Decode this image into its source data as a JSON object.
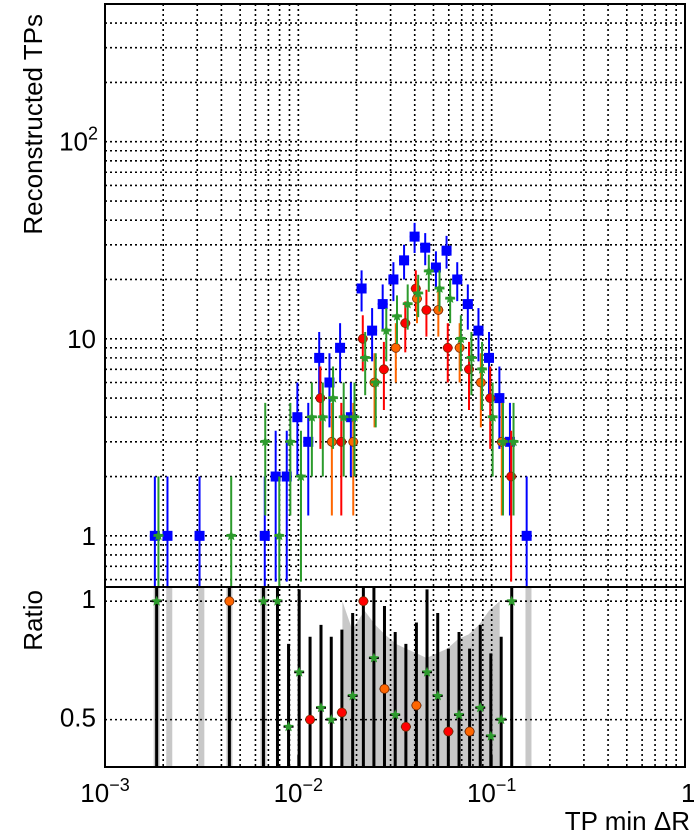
{
  "chart_data": [
    {
      "panel": "top",
      "type": "scatter",
      "title": "",
      "ylabel": "Reconstructed TPs",
      "xlabel": "",
      "x_scale": "log",
      "y_scale": "log",
      "xlim": [
        0.001,
        1
      ],
      "ylim": [
        0.55,
        500
      ],
      "grid": true,
      "y_ticks": [
        {
          "value": 1,
          "label": "1"
        },
        {
          "value": 10,
          "label": "10"
        },
        {
          "value": 100,
          "label": "10",
          "sup": "2"
        }
      ],
      "series": [
        {
          "color": "#0000ff",
          "marker": "square",
          "points": [
            {
              "x": 0.00185,
              "y": 1
            },
            {
              "x": 0.00215,
              "y": 1
            },
            {
              "x": 0.00315,
              "y": 1
            },
            {
              "x": 0.00685,
              "y": 1
            },
            {
              "x": 0.0078,
              "y": 2
            },
            {
              "x": 0.0089,
              "y": 2
            },
            {
              "x": 0.0101,
              "y": 4
            },
            {
              "x": 0.0115,
              "y": 3
            },
            {
              "x": 0.0131,
              "y": 8
            },
            {
              "x": 0.0148,
              "y": 6
            },
            {
              "x": 0.0168,
              "y": 9
            },
            {
              "x": 0.0191,
              "y": 4
            },
            {
              "x": 0.0217,
              "y": 18
            },
            {
              "x": 0.0246,
              "y": 11
            },
            {
              "x": 0.0279,
              "y": 15
            },
            {
              "x": 0.0317,
              "y": 20
            },
            {
              "x": 0.036,
              "y": 25
            },
            {
              "x": 0.0408,
              "y": 33
            },
            {
              "x": 0.0463,
              "y": 29
            },
            {
              "x": 0.0526,
              "y": 23
            },
            {
              "x": 0.0597,
              "y": 28
            },
            {
              "x": 0.0678,
              "y": 20
            },
            {
              "x": 0.0769,
              "y": 15
            },
            {
              "x": 0.0873,
              "y": 11
            },
            {
              "x": 0.099,
              "y": 8
            },
            {
              "x": 0.112,
              "y": 5
            },
            {
              "x": 0.127,
              "y": 3
            },
            {
              "x": 0.155,
              "y": 1
            }
          ]
        },
        {
          "color": "#ff0000",
          "marker": "circle",
          "points": [
            {
              "x": 0.0131,
              "y": 5
            },
            {
              "x": 0.0168,
              "y": 3
            },
            {
              "x": 0.0217,
              "y": 10
            },
            {
              "x": 0.0279,
              "y": 7
            },
            {
              "x": 0.036,
              "y": 12
            },
            {
              "x": 0.0408,
              "y": 18
            },
            {
              "x": 0.0463,
              "y": 14
            },
            {
              "x": 0.0597,
              "y": 9
            },
            {
              "x": 0.0769,
              "y": 7
            },
            {
              "x": 0.099,
              "y": 5
            },
            {
              "x": 0.127,
              "y": 2
            }
          ]
        },
        {
          "color": "#ff6600",
          "marker": "circle",
          "points": [
            {
              "x": 0.0148,
              "y": 3
            },
            {
              "x": 0.0191,
              "y": 3
            },
            {
              "x": 0.0246,
              "y": 6
            },
            {
              "x": 0.0317,
              "y": 9
            },
            {
              "x": 0.0408,
              "y": 16
            },
            {
              "x": 0.0526,
              "y": 14
            },
            {
              "x": 0.0678,
              "y": 9
            },
            {
              "x": 0.0873,
              "y": 6
            },
            {
              "x": 0.112,
              "y": 3
            }
          ]
        },
        {
          "color": "#2c9b2c",
          "marker": "star",
          "points": [
            {
              "x": 0.00185,
              "y": 1
            },
            {
              "x": 0.0044,
              "y": 1
            },
            {
              "x": 0.0066,
              "y": 3
            },
            {
              "x": 0.0078,
              "y": 1
            },
            {
              "x": 0.0089,
              "y": 3
            },
            {
              "x": 0.0101,
              "y": 2
            },
            {
              "x": 0.0115,
              "y": 4
            },
            {
              "x": 0.0131,
              "y": 4
            },
            {
              "x": 0.0148,
              "y": 5
            },
            {
              "x": 0.0168,
              "y": 4
            },
            {
              "x": 0.0191,
              "y": 4
            },
            {
              "x": 0.0217,
              "y": 8
            },
            {
              "x": 0.0246,
              "y": 6
            },
            {
              "x": 0.0279,
              "y": 11
            },
            {
              "x": 0.0317,
              "y": 13
            },
            {
              "x": 0.036,
              "y": 15
            },
            {
              "x": 0.0408,
              "y": 17
            },
            {
              "x": 0.0463,
              "y": 22
            },
            {
              "x": 0.0526,
              "y": 18
            },
            {
              "x": 0.0597,
              "y": 16
            },
            {
              "x": 0.0678,
              "y": 10
            },
            {
              "x": 0.0769,
              "y": 8
            },
            {
              "x": 0.0873,
              "y": 7
            },
            {
              "x": 0.099,
              "y": 4
            },
            {
              "x": 0.112,
              "y": 3
            },
            {
              "x": 0.127,
              "y": 3
            }
          ]
        }
      ]
    },
    {
      "panel": "ratio",
      "type": "scatter",
      "title": "",
      "ylabel": "Ratio",
      "xlabel": "TP min ΔR",
      "x_scale": "log",
      "xlim": [
        0.001,
        1
      ],
      "ylim": [
        0.3,
        1.06
      ],
      "grid": true,
      "x_ticks": [
        {
          "value": 0.001,
          "label": "10",
          "sup": "−3"
        },
        {
          "value": 0.01,
          "label": "10",
          "sup": "−2"
        },
        {
          "value": 0.1,
          "label": "10",
          "sup": "−1"
        },
        {
          "value": 1,
          "label": "1"
        }
      ],
      "y_ticks": [
        {
          "value": 0.5,
          "label": "0.5"
        },
        {
          "value": 1,
          "label": "1"
        }
      ],
      "band_color": "#c8c8c8",
      "band_upper": [
        {
          "x": 0.0169,
          "y": 1.0
        },
        {
          "x": 0.019,
          "y": 0.88
        },
        {
          "x": 0.022,
          "y": 0.96
        },
        {
          "x": 0.025,
          "y": 0.9
        },
        {
          "x": 0.028,
          "y": 0.86
        },
        {
          "x": 0.032,
          "y": 0.82
        },
        {
          "x": 0.036,
          "y": 0.8
        },
        {
          "x": 0.041,
          "y": 0.78
        },
        {
          "x": 0.046,
          "y": 0.76
        },
        {
          "x": 0.052,
          "y": 0.78
        },
        {
          "x": 0.059,
          "y": 0.8
        },
        {
          "x": 0.067,
          "y": 0.84
        },
        {
          "x": 0.076,
          "y": 0.86
        },
        {
          "x": 0.086,
          "y": 0.9
        },
        {
          "x": 0.097,
          "y": 0.96
        },
        {
          "x": 0.11,
          "y": 1.0
        }
      ],
      "points": [
        {
          "x": 0.00185,
          "y": 1.0,
          "c": "#2c9b2c",
          "s": "star"
        },
        {
          "x": 0.0044,
          "y": 1.0,
          "c": "#ff6600",
          "s": "circle"
        },
        {
          "x": 0.0066,
          "y": 1.0,
          "c": "#2c9b2c",
          "s": "star"
        },
        {
          "x": 0.0078,
          "y": 1.0,
          "c": "#2c9b2c",
          "s": "star"
        },
        {
          "x": 0.0089,
          "y": 0.47,
          "c": "#2c9b2c",
          "s": "star"
        },
        {
          "x": 0.0101,
          "y": 0.7,
          "c": "#2c9b2c",
          "s": "star"
        },
        {
          "x": 0.0115,
          "y": 0.5,
          "c": "#ff0000",
          "s": "circle"
        },
        {
          "x": 0.0131,
          "y": 0.55,
          "c": "#2c9b2c",
          "s": "star"
        },
        {
          "x": 0.0148,
          "y": 0.5,
          "c": "#2c9b2c",
          "s": "star"
        },
        {
          "x": 0.0168,
          "y": 0.53,
          "c": "#ff0000",
          "s": "circle"
        },
        {
          "x": 0.0191,
          "y": 0.6,
          "c": "#2c9b2c",
          "s": "star"
        },
        {
          "x": 0.0217,
          "y": 1.0,
          "c": "#ff0000",
          "s": "circle"
        },
        {
          "x": 0.0246,
          "y": 0.76,
          "c": "#2c9b2c",
          "s": "star"
        },
        {
          "x": 0.0279,
          "y": 0.63,
          "c": "#ff6600",
          "s": "circle"
        },
        {
          "x": 0.0317,
          "y": 0.52,
          "c": "#2c9b2c",
          "s": "star"
        },
        {
          "x": 0.036,
          "y": 0.47,
          "c": "#ff0000",
          "s": "circle"
        },
        {
          "x": 0.0408,
          "y": 0.56,
          "c": "#ff6600",
          "s": "circle"
        },
        {
          "x": 0.0463,
          "y": 0.7,
          "c": "#2c9b2c",
          "s": "star"
        },
        {
          "x": 0.0526,
          "y": 0.6,
          "c": "#2c9b2c",
          "s": "star"
        },
        {
          "x": 0.0597,
          "y": 0.45,
          "c": "#ff0000",
          "s": "circle"
        },
        {
          "x": 0.0678,
          "y": 0.52,
          "c": "#2c9b2c",
          "s": "star"
        },
        {
          "x": 0.0769,
          "y": 0.45,
          "c": "#ff6600",
          "s": "circle"
        },
        {
          "x": 0.0873,
          "y": 0.55,
          "c": "#2c9b2c",
          "s": "star"
        },
        {
          "x": 0.099,
          "y": 0.43,
          "c": "#2c9b2c",
          "s": "star"
        },
        {
          "x": 0.112,
          "y": 0.5,
          "c": "#2c9b2c",
          "s": "star"
        },
        {
          "x": 0.127,
          "y": 1.0,
          "c": "#2c9b2c",
          "s": "star"
        }
      ]
    }
  ]
}
